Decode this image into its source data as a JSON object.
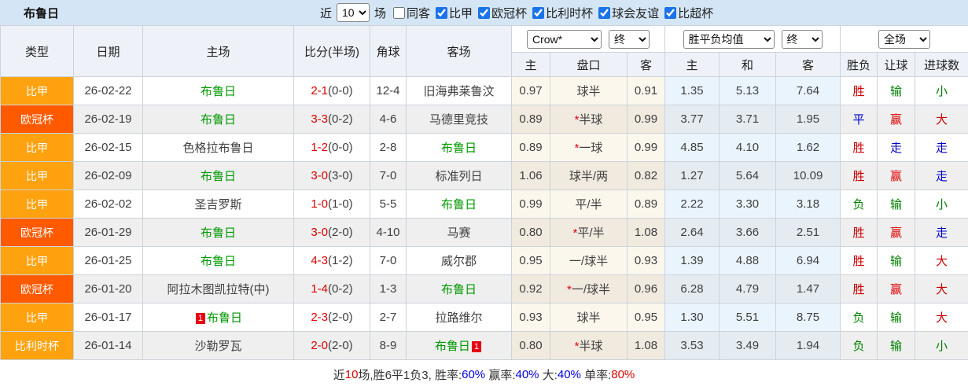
{
  "titlebar": {
    "title": "布鲁日",
    "near_label": "近",
    "matches_value": "10",
    "games_label": "场"
  },
  "filters": [
    {
      "label": "同客",
      "checked": false
    },
    {
      "label": "比甲",
      "checked": true
    },
    {
      "label": "欧冠杯",
      "checked": true
    },
    {
      "label": "比利时杯",
      "checked": true
    },
    {
      "label": "球会友谊",
      "checked": true
    },
    {
      "label": "比超杯",
      "checked": true
    }
  ],
  "header": {
    "main_cols": [
      "类型",
      "日期",
      "主场",
      "比分(半场)",
      "角球",
      "客场"
    ],
    "sub_cols": [
      "主",
      "盘口",
      "客",
      "主",
      "和",
      "客",
      "胜负",
      "让球",
      "进球数"
    ],
    "selects": {
      "bookmaker": "Crow*",
      "bookmaker_state": "终",
      "europe": "胜平负均值",
      "europe_state": "终",
      "scope": "全场"
    }
  },
  "type_colors": {
    "比甲": "#ffa20f",
    "欧冠杯": "#ff5a00",
    "比利时杯": "#ffa20f"
  },
  "result_colors": {
    "胜": "#cc0000",
    "平": "#0000cc",
    "负": "#008000",
    "赢": "#e00000",
    "输": "#008000",
    "走": "#0000cc",
    "大": "#cc0000",
    "小": "#008000"
  },
  "rows": [
    {
      "type": "比甲",
      "date": "26-02-22",
      "home": "布鲁日",
      "home_hl": true,
      "home_badge": "",
      "score": "2-1",
      "half": "(0-0)",
      "corner": "12-4",
      "away": "旧海弗莱鲁汶",
      "away_hl": false,
      "away_badge": "",
      "asia_home": "0.97",
      "asia_star": false,
      "asia_handicap": "球半",
      "asia_away": "0.91",
      "eu_home": "1.35",
      "eu_draw": "5.13",
      "eu_away": "7.64",
      "res_wdl": "胜",
      "res_handicap": "输",
      "res_goals": "小"
    },
    {
      "type": "欧冠杯",
      "date": "26-02-19",
      "home": "布鲁日",
      "home_hl": true,
      "home_badge": "",
      "score": "3-3",
      "half": "(0-2)",
      "corner": "4-6",
      "away": "马德里竞技",
      "away_hl": false,
      "away_badge": "",
      "asia_home": "0.89",
      "asia_star": true,
      "asia_handicap": "半球",
      "asia_away": "0.99",
      "eu_home": "3.77",
      "eu_draw": "3.71",
      "eu_away": "1.95",
      "res_wdl": "平",
      "res_handicap": "赢",
      "res_goals": "大"
    },
    {
      "type": "比甲",
      "date": "26-02-15",
      "home": "色格拉布鲁日",
      "home_hl": false,
      "home_badge": "",
      "score": "1-2",
      "half": "(0-0)",
      "corner": "2-8",
      "away": "布鲁日",
      "away_hl": true,
      "away_badge": "",
      "asia_home": "0.89",
      "asia_star": true,
      "asia_handicap": "一球",
      "asia_away": "0.99",
      "eu_home": "4.85",
      "eu_draw": "4.10",
      "eu_away": "1.62",
      "res_wdl": "胜",
      "res_handicap": "走",
      "res_goals": "走"
    },
    {
      "type": "比甲",
      "date": "26-02-09",
      "home": "布鲁日",
      "home_hl": true,
      "home_badge": "",
      "score": "3-0",
      "half": "(3-0)",
      "corner": "7-0",
      "away": "标准列日",
      "away_hl": false,
      "away_badge": "",
      "asia_home": "1.06",
      "asia_star": false,
      "asia_handicap": "球半/两",
      "asia_away": "0.82",
      "eu_home": "1.27",
      "eu_draw": "5.64",
      "eu_away": "10.09",
      "res_wdl": "胜",
      "res_handicap": "赢",
      "res_goals": "走"
    },
    {
      "type": "比甲",
      "date": "26-02-02",
      "home": "圣吉罗斯",
      "home_hl": false,
      "home_badge": "",
      "score": "1-0",
      "half": "(1-0)",
      "corner": "5-5",
      "away": "布鲁日",
      "away_hl": true,
      "away_badge": "",
      "asia_home": "0.99",
      "asia_star": false,
      "asia_handicap": "平/半",
      "asia_away": "0.89",
      "eu_home": "2.22",
      "eu_draw": "3.30",
      "eu_away": "3.18",
      "res_wdl": "负",
      "res_handicap": "输",
      "res_goals": "小"
    },
    {
      "type": "欧冠杯",
      "date": "26-01-29",
      "home": "布鲁日",
      "home_hl": true,
      "home_badge": "",
      "score": "3-0",
      "half": "(2-0)",
      "corner": "4-10",
      "away": "马赛",
      "away_hl": false,
      "away_badge": "",
      "asia_home": "0.80",
      "asia_star": true,
      "asia_handicap": "平/半",
      "asia_away": "1.08",
      "eu_home": "2.64",
      "eu_draw": "3.66",
      "eu_away": "2.51",
      "res_wdl": "胜",
      "res_handicap": "赢",
      "res_goals": "走"
    },
    {
      "type": "比甲",
      "date": "26-01-25",
      "home": "布鲁日",
      "home_hl": true,
      "home_badge": "",
      "score": "4-3",
      "half": "(1-2)",
      "corner": "7-0",
      "away": "威尔郡",
      "away_hl": false,
      "away_badge": "",
      "asia_home": "0.95",
      "asia_star": false,
      "asia_handicap": "一/球半",
      "asia_away": "0.93",
      "eu_home": "1.39",
      "eu_draw": "4.88",
      "eu_away": "6.94",
      "res_wdl": "胜",
      "res_handicap": "输",
      "res_goals": "大"
    },
    {
      "type": "欧冠杯",
      "date": "26-01-20",
      "home": "阿拉木图凯拉特(中)",
      "home_hl": false,
      "home_badge": "",
      "score": "1-4",
      "half": "(0-2)",
      "corner": "1-3",
      "away": "布鲁日",
      "away_hl": true,
      "away_badge": "",
      "asia_home": "0.92",
      "asia_star": true,
      "asia_handicap": "一/球半",
      "asia_away": "0.96",
      "eu_home": "6.28",
      "eu_draw": "4.79",
      "eu_away": "1.47",
      "res_wdl": "胜",
      "res_handicap": "赢",
      "res_goals": "大"
    },
    {
      "type": "比甲",
      "date": "26-01-17",
      "home": "布鲁日",
      "home_hl": true,
      "home_badge": "1",
      "score": "2-3",
      "half": "(2-0)",
      "corner": "2-7",
      "away": "拉路维尔",
      "away_hl": false,
      "away_badge": "",
      "asia_home": "0.93",
      "asia_star": false,
      "asia_handicap": "球半",
      "asia_away": "0.95",
      "eu_home": "1.30",
      "eu_draw": "5.51",
      "eu_away": "8.75",
      "res_wdl": "负",
      "res_handicap": "输",
      "res_goals": "大"
    },
    {
      "type": "比利时杯",
      "date": "26-01-14",
      "home": "沙勒罗瓦",
      "home_hl": false,
      "home_badge": "",
      "score": "2-0",
      "half": "(2-0)",
      "corner": "8-9",
      "away": "布鲁日",
      "away_hl": true,
      "away_badge": "1",
      "asia_home": "0.80",
      "asia_star": true,
      "asia_handicap": "半球",
      "asia_away": "1.08",
      "eu_home": "3.53",
      "eu_draw": "3.49",
      "eu_away": "1.94",
      "res_wdl": "负",
      "res_handicap": "输",
      "res_goals": "小"
    }
  ],
  "footer_segments": [
    {
      "text": "近",
      "color": "#333333"
    },
    {
      "text": "10",
      "color": "#e00000"
    },
    {
      "text": "场,胜6平1负3, 胜率:",
      "color": "#333333"
    },
    {
      "text": "60%",
      "color": "#0000e0"
    },
    {
      "text": " 赢率:",
      "color": "#333333"
    },
    {
      "text": "40%",
      "color": "#0000e0"
    },
    {
      "text": " 大:",
      "color": "#333333"
    },
    {
      "text": "40%",
      "color": "#0000e0"
    },
    {
      "text": " 单率:",
      "color": "#333333"
    },
    {
      "text": "80%",
      "color": "#e00000"
    }
  ]
}
